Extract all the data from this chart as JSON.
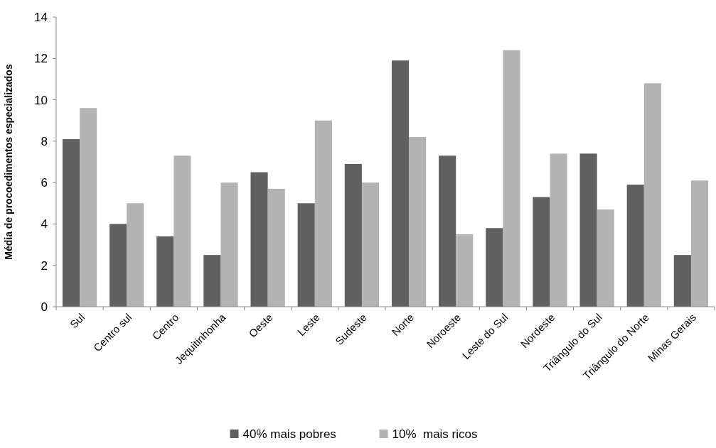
{
  "chart_data": {
    "type": "bar",
    "ylabel": "Média de procoedimentos especializados",
    "categories": [
      "Sul",
      "Centro sul",
      "Centro",
      "Jequitinhonha",
      "Oeste",
      "Leste",
      "Sudeste",
      "Norte",
      "Noroeste",
      "Leste do Sul",
      "Nordeste",
      "Triângulo do Sul",
      "Triângulo do Norte",
      "Minas Gerais"
    ],
    "series": [
      {
        "name": "40% mais pobres",
        "color": "#606060",
        "values": [
          8.1,
          4.0,
          3.4,
          2.5,
          6.5,
          5.0,
          6.9,
          11.9,
          7.3,
          3.8,
          5.3,
          7.4,
          5.9,
          2.5
        ]
      },
      {
        "name": "10%  mais ricos",
        "color": "#b3b3b3",
        "values": [
          9.6,
          5.0,
          7.3,
          6.0,
          5.7,
          9.0,
          6.0,
          8.2,
          3.5,
          12.4,
          7.4,
          4.7,
          10.8,
          6.1
        ]
      }
    ],
    "ylim": [
      0,
      14
    ],
    "yticks": [
      0,
      2,
      4,
      6,
      8,
      10,
      12,
      14
    ],
    "legend": "bottom",
    "grid": false
  }
}
